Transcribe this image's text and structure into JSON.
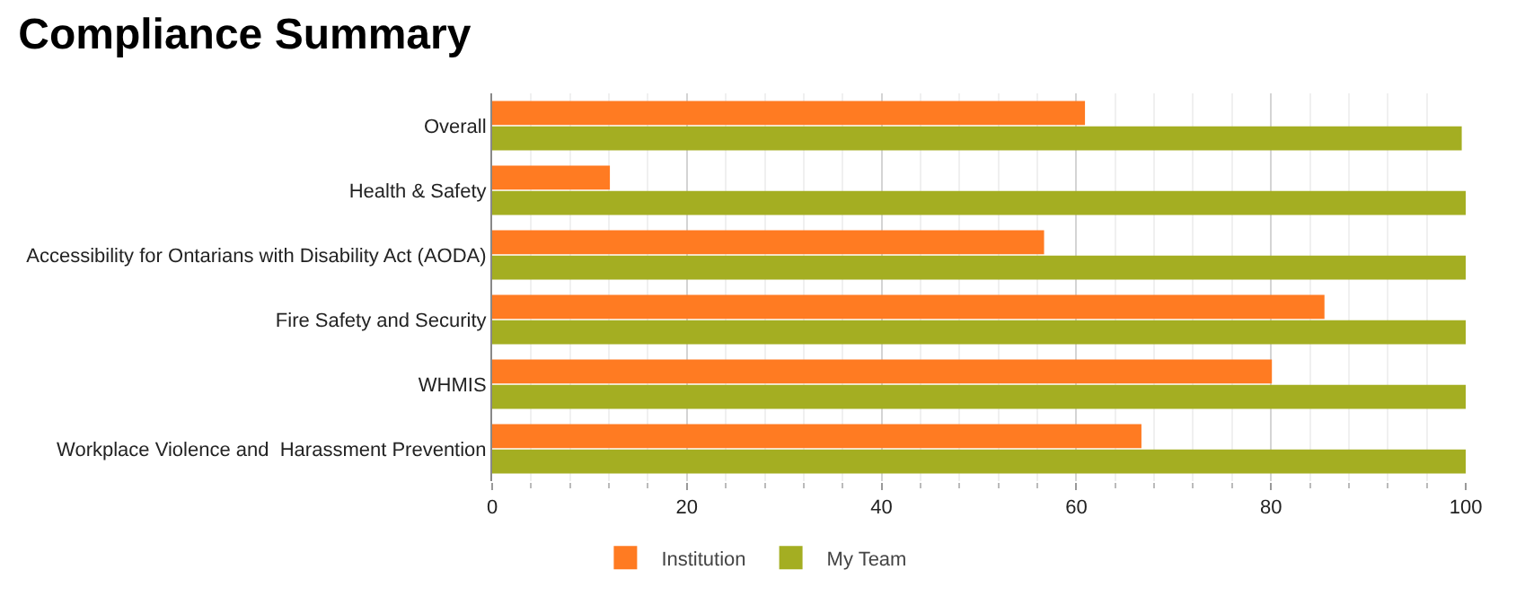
{
  "chart_data": {
    "type": "bar",
    "orientation": "horizontal",
    "title": "Compliance Summary",
    "categories": [
      "Overall",
      "Health & Safety",
      "Accessibility for Ontarians with Disability Act (AODA)",
      "Fire Safety and Security",
      "WHMIS",
      "Workplace Violence and  Harassment Prevention"
    ],
    "series": [
      {
        "name": "Institution",
        "color": "#ff7b22",
        "values": [
          60.8,
          12,
          56.6,
          85.4,
          80,
          66.6
        ]
      },
      {
        "name": "My Team",
        "color": "#a4ae22",
        "values": [
          99.5,
          100,
          100,
          100,
          100,
          100
        ]
      }
    ],
    "xlim": [
      0,
      100
    ],
    "xticks": [
      0,
      20,
      40,
      60,
      80,
      100
    ],
    "grid": "x",
    "legend": "bottom"
  }
}
